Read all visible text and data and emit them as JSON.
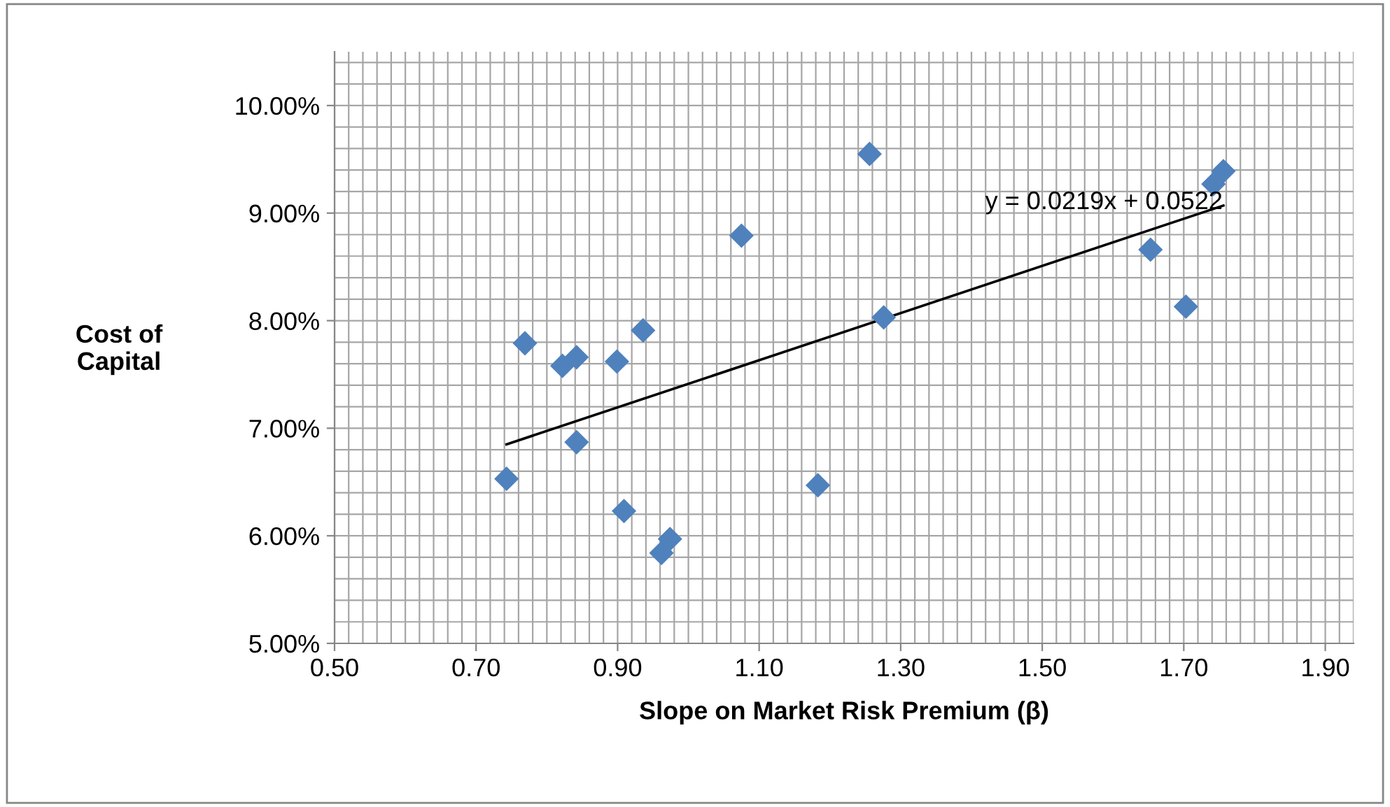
{
  "chart_data": {
    "type": "scatter",
    "xlabel": "Slope on Market Risk Premium (β)",
    "ylabel": "Cost of\nCapital",
    "xlim": [
      0.5,
      1.94
    ],
    "ylim": [
      0.05,
      0.105
    ],
    "xticks": [
      {
        "value": 0.5,
        "label": "0.50"
      },
      {
        "value": 0.7,
        "label": "0.70"
      },
      {
        "value": 0.9,
        "label": "0.90"
      },
      {
        "value": 1.1,
        "label": "1.10"
      },
      {
        "value": 1.3,
        "label": "1.30"
      },
      {
        "value": 1.5,
        "label": "1.50"
      },
      {
        "value": 1.7,
        "label": "1.70"
      },
      {
        "value": 1.9,
        "label": "1.90"
      }
    ],
    "yticks": [
      {
        "value": 0.05,
        "label": "5.00%"
      },
      {
        "value": 0.06,
        "label": "6.00%"
      },
      {
        "value": 0.07,
        "label": "7.00%"
      },
      {
        "value": 0.08,
        "label": "8.00%"
      },
      {
        "value": 0.09,
        "label": "9.00%"
      },
      {
        "value": 0.1,
        "label": "10.00%"
      }
    ],
    "grid": true,
    "series": [
      {
        "marker": "diamond",
        "color": "#4f81bd",
        "x": [
          0.743,
          0.769,
          0.822,
          0.842,
          0.842,
          0.899,
          0.936,
          0.909,
          0.962,
          0.974,
          1.075,
          1.183,
          1.256,
          1.276,
          1.653,
          1.703,
          1.742,
          1.756
        ],
        "values": [
          0.0653,
          0.0779,
          0.0758,
          0.0766,
          0.0687,
          0.0762,
          0.0791,
          0.0623,
          0.0584,
          0.0597,
          0.0879,
          0.0647,
          0.0955,
          0.0803,
          0.0866,
          0.0813,
          0.0927,
          0.0939
        ]
      },
      {
        "type": "line",
        "color": "#000000",
        "x": [
          0.743,
          1.756
        ],
        "values": [
          0.0685,
          0.0907
        ]
      }
    ],
    "annotations": [
      "y = 0.0219x + 0.0522"
    ]
  }
}
